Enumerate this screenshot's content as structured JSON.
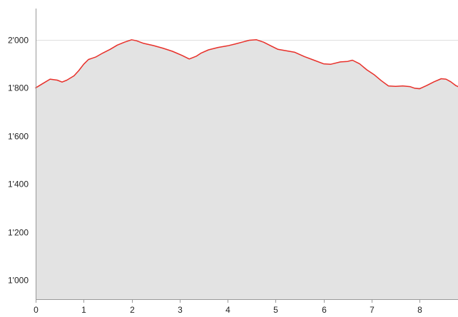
{
  "chart_data": {
    "type": "area",
    "title": "",
    "xlabel": "",
    "ylabel": "",
    "xlim": [
      0,
      8.8
    ],
    "ylim": [
      920,
      2130
    ],
    "grid": "horizontal",
    "legend": "none",
    "x_ticks": [
      {
        "value": 0,
        "label": "0"
      },
      {
        "value": 1,
        "label": "1"
      },
      {
        "value": 2,
        "label": "2"
      },
      {
        "value": 3,
        "label": "3"
      },
      {
        "value": 4,
        "label": "4"
      },
      {
        "value": 5,
        "label": "5"
      },
      {
        "value": 6,
        "label": "6"
      },
      {
        "value": 7,
        "label": "7"
      },
      {
        "value": 8,
        "label": "8"
      }
    ],
    "y_ticks": [
      {
        "value": 1000,
        "label": "1'000"
      },
      {
        "value": 1200,
        "label": "1'200"
      },
      {
        "value": 1400,
        "label": "1'400"
      },
      {
        "value": 1600,
        "label": "1'600"
      },
      {
        "value": 1800,
        "label": "1'800"
      },
      {
        "value": 2000,
        "label": "2'000"
      }
    ],
    "colors": {
      "line": "#e8302a",
      "fill": "#e3e3e3",
      "grid": "#dedede",
      "axis": "#999999"
    },
    "series": [
      {
        "x": [
          0,
          0.15,
          0.3,
          0.45,
          0.55,
          0.65,
          0.8,
          0.9,
          1.0,
          1.1,
          1.25,
          1.4,
          1.55,
          1.7,
          1.85,
          2.0,
          2.1,
          2.25,
          2.45,
          2.65,
          2.85,
          3.05,
          3.2,
          3.35,
          3.45,
          3.6,
          3.8,
          4.0,
          4.15,
          4.3,
          4.45,
          4.6,
          4.75,
          4.9,
          5.05,
          5.2,
          5.4,
          5.6,
          5.8,
          6.0,
          6.15,
          6.35,
          6.5,
          6.6,
          6.75,
          6.9,
          7.05,
          7.2,
          7.35,
          7.5,
          7.65,
          7.8,
          7.9,
          8.0,
          8.15,
          8.3,
          8.45,
          8.55,
          8.65,
          8.75,
          8.8
        ],
        "y": [
          1800,
          1818,
          1836,
          1832,
          1824,
          1832,
          1850,
          1872,
          1898,
          1918,
          1928,
          1945,
          1960,
          1978,
          1990,
          2000,
          1996,
          1985,
          1976,
          1965,
          1952,
          1935,
          1920,
          1932,
          1945,
          1958,
          1968,
          1975,
          1982,
          1990,
          1998,
          2000,
          1990,
          1975,
          1960,
          1955,
          1948,
          1930,
          1915,
          1900,
          1898,
          1908,
          1910,
          1915,
          1900,
          1875,
          1855,
          1830,
          1808,
          1806,
          1808,
          1805,
          1798,
          1796,
          1810,
          1825,
          1838,
          1836,
          1825,
          1810,
          1805
        ]
      }
    ]
  }
}
